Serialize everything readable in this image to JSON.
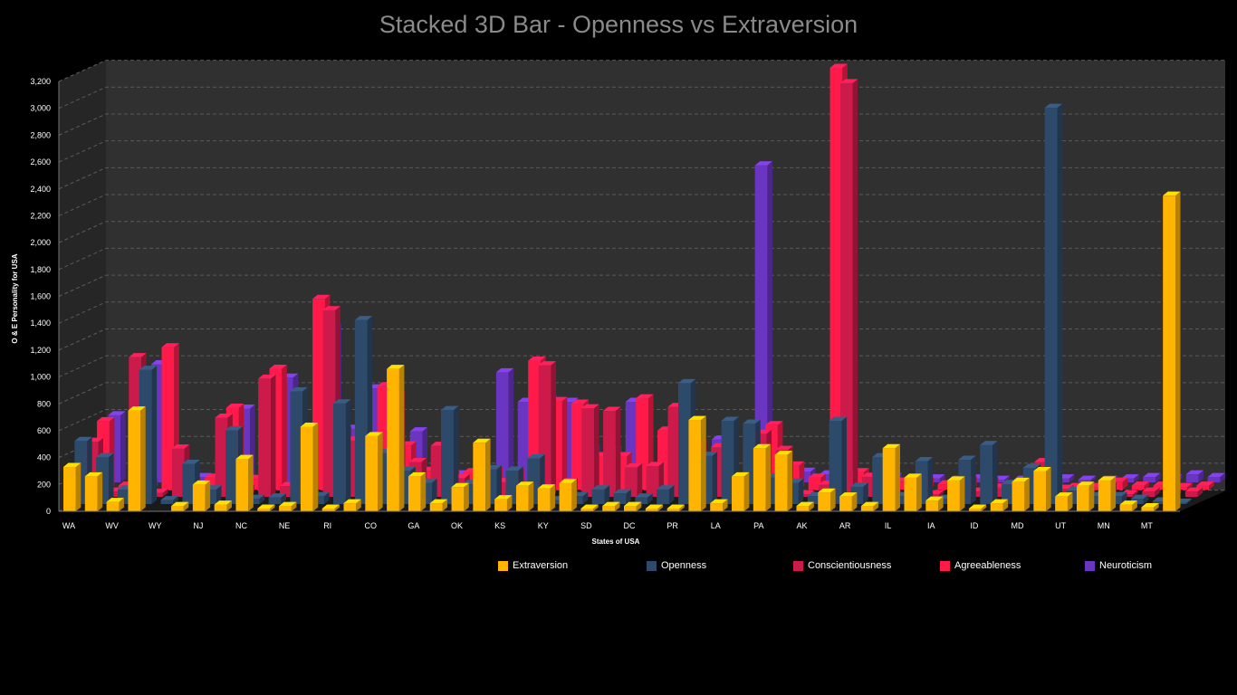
{
  "chart_data": {
    "type": "bar",
    "variant": "3d-clustered",
    "title": "Stacked 3D Bar - Openness vs Extraversion",
    "xlabel": "States of USA",
    "ylabel": "O & E Personality for USA",
    "ylim": [
      0,
      3200
    ],
    "ytick_step": 200,
    "grid": true,
    "legend_position": "bottom-right",
    "categories": [
      "WA",
      "WV",
      "WY",
      "NJ",
      "NC",
      "NE",
      "RI",
      "CO",
      "GA",
      "OK",
      "KS",
      "KY",
      "SD",
      "DC",
      "PR",
      "LA",
      "PA",
      "AK",
      "AR",
      "IL",
      "IA",
      "ID",
      "MD",
      "UT",
      "MN",
      "MT"
    ],
    "series": [
      {
        "name": "Extraversion",
        "color": "#ffb400",
        "values": [
          [
            330,
            260
          ],
          [
            70,
            750
          ],
          [
            0,
            40
          ],
          [
            200,
            50
          ],
          [
            390,
            20
          ],
          [
            40,
            630
          ],
          [
            20,
            60
          ],
          [
            560,
            1060
          ],
          [
            260,
            60
          ],
          [
            180,
            510
          ],
          [
            90,
            190
          ],
          [
            170,
            210
          ],
          [
            20,
            40
          ],
          [
            40,
            20
          ],
          [
            20,
            680
          ],
          [
            60,
            260
          ],
          [
            470,
            420
          ],
          [
            40,
            140
          ],
          [
            110,
            40
          ],
          [
            470,
            250
          ],
          [
            80,
            230
          ],
          [
            20,
            60
          ],
          [
            220,
            300
          ],
          [
            110,
            190
          ],
          [
            230,
            50
          ],
          [
            30,
            2350
          ]
        ]
      },
      {
        "name": "Openness",
        "color": "#2e4a6b",
        "values": [
          [
            470,
            350
          ],
          [
            110,
            1000
          ],
          [
            30,
            300
          ],
          [
            110,
            550
          ],
          [
            40,
            50
          ],
          [
            840,
            60
          ],
          [
            750,
            1370
          ],
          [
            380,
            250
          ],
          [
            160,
            700
          ],
          [
            150,
            260
          ],
          [
            250,
            340
          ],
          [
            30,
            60
          ],
          [
            110,
            80
          ],
          [
            50,
            110
          ],
          [
            900,
            360
          ],
          [
            620,
            600
          ],
          [
            200,
            160
          ],
          [
            60,
            620
          ],
          [
            130,
            350
          ],
          [
            60,
            320
          ],
          [
            40,
            330
          ],
          [
            440,
            150
          ],
          [
            270,
            2950
          ],
          [
            100,
            60
          ],
          [
            60,
            40
          ],
          [
            20,
            10
          ]
        ]
      },
      {
        "name": "Conscientiousness",
        "color": "#cc1a4a",
        "values": [
          [
            410,
            40
          ],
          [
            1040,
            30
          ],
          [
            360,
            60
          ],
          [
            590,
            60
          ],
          [
            880,
            80
          ],
          [
            30,
            1390
          ],
          [
            420,
            300
          ],
          [
            760,
            260
          ],
          [
            380,
            140
          ],
          [
            140,
            110
          ],
          [
            40,
            980
          ],
          [
            110,
            660
          ],
          [
            640,
            220
          ],
          [
            230,
            670
          ],
          [
            390,
            370
          ],
          [
            100,
            470
          ],
          [
            350,
            20
          ],
          [
            90,
            3080
          ],
          [
            150,
            30
          ],
          [
            30,
            20
          ],
          [
            80,
            40
          ],
          [
            70,
            30
          ],
          [
            260,
            60
          ],
          [
            20,
            80
          ],
          [
            20,
            40
          ],
          [
            20,
            40
          ]
        ]
      },
      {
        "name": "Agreeableness",
        "color": "#ff1a4a",
        "values": [
          [
            510,
            30
          ],
          [
            60,
            1060
          ],
          [
            60,
            90
          ],
          [
            610,
            80
          ],
          [
            900,
            70
          ],
          [
            1420,
            440
          ],
          [
            390,
            770
          ],
          [
            330,
            140
          ],
          [
            120,
            130
          ],
          [
            140,
            130
          ],
          [
            960,
            660
          ],
          [
            640,
            250
          ],
          [
            250,
            680
          ],
          [
            440,
            400
          ],
          [
            80,
            20
          ],
          [
            100,
            480
          ],
          [
            180,
            90
          ],
          [
            3140,
            130
          ],
          [
            160,
            60
          ],
          [
            60,
            40
          ],
          [
            70,
            60
          ],
          [
            30,
            20
          ],
          [
            50,
            20
          ],
          [
            20,
            60
          ],
          [
            30,
            30
          ],
          [
            20,
            30
          ]
        ]
      },
      {
        "name": "Neuroticism",
        "color": "#6a35c0",
        "values": [
          [
            500,
            40
          ],
          [
            880,
            20
          ],
          [
            40,
            60
          ],
          [
            550,
            60
          ],
          [
            780,
            40
          ],
          [
            1150,
            400
          ],
          [
            700,
            60
          ],
          [
            380,
            100
          ],
          [
            60,
            50
          ],
          [
            820,
            600
          ],
          [
            620,
            600
          ],
          [
            250,
            240
          ],
          [
            600,
            100
          ],
          [
            440,
            30
          ],
          [
            320,
            40
          ],
          [
            2360,
            60
          ],
          [
            80,
            60
          ],
          [
            20,
            40
          ],
          [
            40,
            30
          ],
          [
            30,
            20
          ],
          [
            30,
            20
          ],
          [
            20,
            20
          ],
          [
            30,
            20
          ],
          [
            20,
            30
          ],
          [
            40,
            30
          ],
          [
            60,
            40
          ]
        ]
      }
    ]
  },
  "legend": {
    "items": [
      {
        "label": "Extraversion",
        "color": "#ffb400"
      },
      {
        "label": "Openness",
        "color": "#2e4a6b"
      },
      {
        "label": "Conscientiousness",
        "color": "#cc1a4a"
      },
      {
        "label": "Agreeableness",
        "color": "#ff1a4a"
      },
      {
        "label": "Neuroticism",
        "color": "#6a35c0"
      }
    ]
  }
}
